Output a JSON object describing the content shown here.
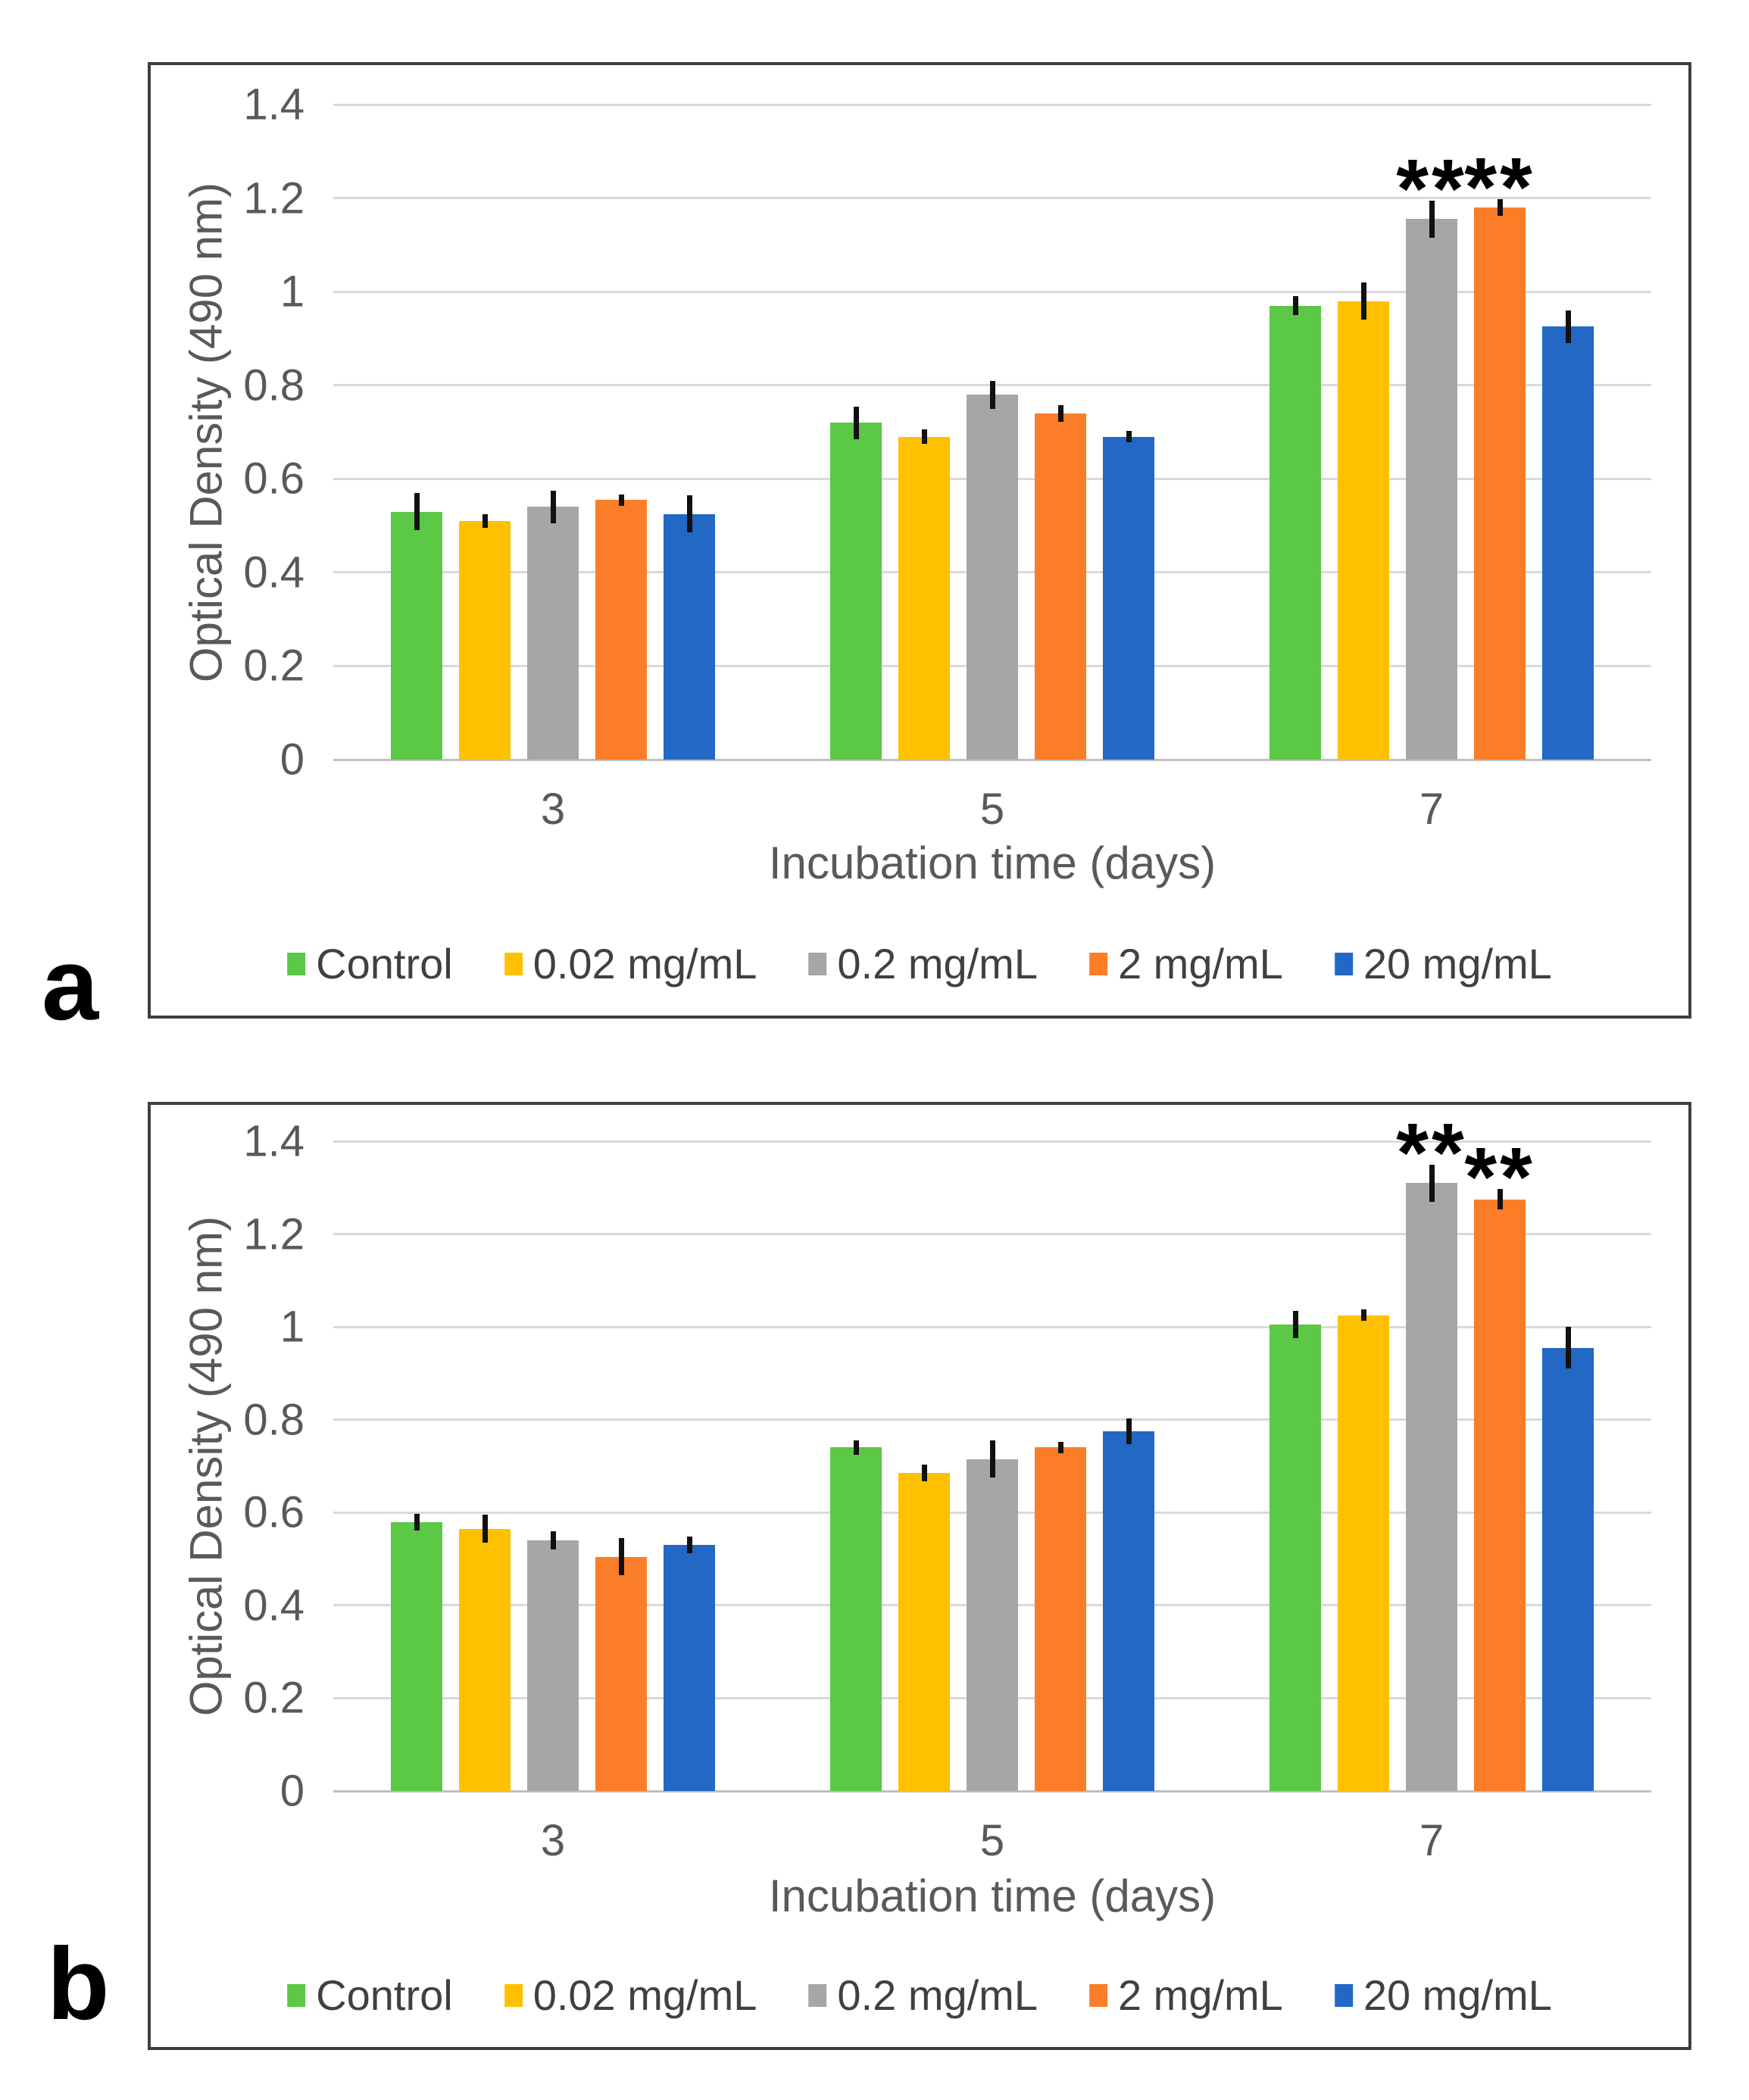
{
  "figure": {
    "panel_a_letter": "a",
    "panel_b_letter": "b"
  },
  "chart_data": [
    {
      "type": "bar",
      "panel": "a",
      "title": "",
      "categories": [
        "3",
        "5",
        "7"
      ],
      "series": [
        {
          "name": "Control",
          "color": "#5BC846",
          "values": [
            0.53,
            0.72,
            0.97
          ],
          "errors": [
            0.04,
            0.035,
            0.02
          ]
        },
        {
          "name": "0.02 mg/mL",
          "color": "#FFC000",
          "values": [
            0.51,
            0.69,
            0.98
          ],
          "errors": [
            0.015,
            0.015,
            0.04
          ]
        },
        {
          "name": "0.2 mg/mL",
          "color": "#A6A6A6",
          "values": [
            0.54,
            0.78,
            1.155
          ],
          "errors": [
            0.035,
            0.03,
            0.04
          ]
        },
        {
          "name": "2 mg/mL",
          "color": "#FC7D28",
          "values": [
            0.555,
            0.74,
            1.18
          ],
          "errors": [
            0.012,
            0.018,
            0.018
          ]
        },
        {
          "name": "20 mg/mL",
          "color": "#2268C4",
          "values": [
            0.525,
            0.69,
            0.925
          ],
          "errors": [
            0.04,
            0.012,
            0.035
          ]
        }
      ],
      "annotations": [
        {
          "text": "**",
          "category_index": 2,
          "series_index": 2
        },
        {
          "text": "**",
          "category_index": 2,
          "series_index": 3
        }
      ],
      "xlabel": "Incubation time (days)",
      "ylabel": "Optical Density (490 nm)",
      "ylim": [
        0,
        1.4
      ],
      "yticks": [
        "0",
        "0.2",
        "0.4",
        "0.6",
        "0.8",
        "1",
        "1.2",
        "1.4"
      ],
      "grid": true,
      "legend_position": "bottom"
    },
    {
      "type": "bar",
      "panel": "b",
      "title": "",
      "categories": [
        "3",
        "5",
        "7"
      ],
      "series": [
        {
          "name": "Control",
          "color": "#5BC846",
          "values": [
            0.58,
            0.74,
            1.005
          ],
          "errors": [
            0.018,
            0.015,
            0.03
          ]
        },
        {
          "name": "0.02 mg/mL",
          "color": "#FFC000",
          "values": [
            0.565,
            0.685,
            1.025
          ],
          "errors": [
            0.03,
            0.018,
            0.012
          ]
        },
        {
          "name": "0.2 mg/mL",
          "color": "#A6A6A6",
          "values": [
            0.54,
            0.715,
            1.31
          ],
          "errors": [
            0.02,
            0.04,
            0.04
          ]
        },
        {
          "name": "2 mg/mL",
          "color": "#FC7D28",
          "values": [
            0.505,
            0.74,
            1.275
          ],
          "errors": [
            0.04,
            0.012,
            0.022
          ]
        },
        {
          "name": "20 mg/mL",
          "color": "#2268C4",
          "values": [
            0.53,
            0.775,
            0.955
          ],
          "errors": [
            0.018,
            0.028,
            0.045
          ]
        }
      ],
      "annotations": [
        {
          "text": "**",
          "category_index": 2,
          "series_index": 2
        },
        {
          "text": "**",
          "category_index": 2,
          "series_index": 3
        }
      ],
      "xlabel": "Incubation time (days)",
      "ylabel": "Optical Density (490 nm)",
      "ylim": [
        0,
        1.4
      ],
      "yticks": [
        "0",
        "0.2",
        "0.4",
        "0.6",
        "0.8",
        "1",
        "1.2",
        "1.4"
      ],
      "grid": true,
      "legend_position": "bottom"
    }
  ]
}
